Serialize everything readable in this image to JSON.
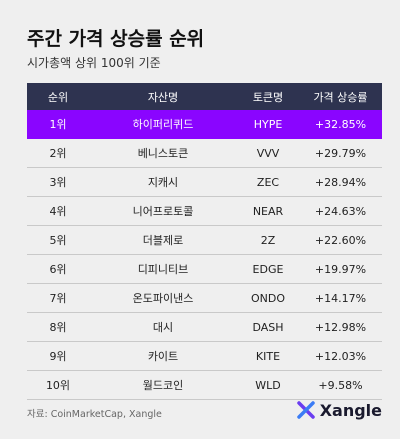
{
  "header": {
    "title": "주간 가격 상승률 순위",
    "subtitle": "시가총액 상위 100위 기준"
  },
  "table": {
    "columns": [
      "순위",
      "자산명",
      "토큰명",
      "가격 상승률"
    ],
    "rows": [
      [
        "1위",
        "하이퍼리퀴드",
        "HYPE",
        "+32.85%"
      ],
      [
        "2위",
        "베니스토큰",
        "VVV",
        "+29.79%"
      ],
      [
        "3위",
        "지캐시",
        "ZEC",
        "+28.94%"
      ],
      [
        "4위",
        "니어프로토콜",
        "NEAR",
        "+24.63%"
      ],
      [
        "5위",
        "더블제로",
        "2Z",
        "+22.60%"
      ],
      [
        "6위",
        "디피니티브",
        "EDGE",
        "+19.97%"
      ],
      [
        "7위",
        "온도파이낸스",
        "ONDO",
        "+14.17%"
      ],
      [
        "8위",
        "대시",
        "DASH",
        "+12.98%"
      ],
      [
        "9위",
        "카이트",
        "KITE",
        "+12.03%"
      ],
      [
        "10위",
        "월드코인",
        "WLD",
        "+9.58%"
      ]
    ],
    "highlight_row": 0,
    "highlight_color": "#8a05ff"
  },
  "footer": {
    "source": "자료: CoinMarketCap, Xangle",
    "brand": "Xangle"
  }
}
